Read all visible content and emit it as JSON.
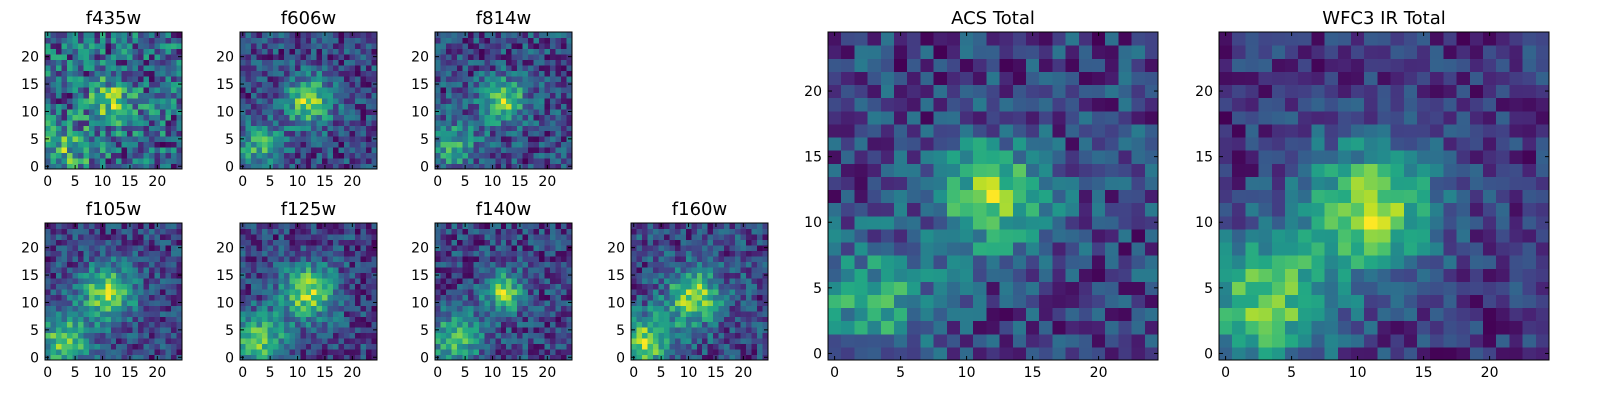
{
  "chart_data": [
    {
      "type": "heatmap",
      "title": "f435w",
      "grid": [
        25,
        25
      ],
      "seed": 11,
      "blobs": [
        [
          12,
          12,
          3.0,
          0.45
        ],
        [
          3,
          3,
          3.5,
          0.35
        ]
      ],
      "noise": 0.34,
      "xticks": [
        0,
        5,
        10,
        15,
        20
      ],
      "yticks": [
        0,
        5,
        10,
        15,
        20
      ]
    },
    {
      "type": "heatmap",
      "title": "f606w",
      "grid": [
        25,
        25
      ],
      "seed": 23,
      "blobs": [
        [
          12,
          12,
          3.0,
          0.75
        ],
        [
          3,
          4,
          3.0,
          0.5
        ]
      ],
      "noise": 0.26,
      "xticks": [
        0,
        5,
        10,
        15,
        20
      ],
      "yticks": [
        0,
        5,
        10,
        15,
        20
      ]
    },
    {
      "type": "heatmap",
      "title": "f814w",
      "grid": [
        25,
        25
      ],
      "seed": 37,
      "blobs": [
        [
          12,
          12,
          2.8,
          0.75
        ],
        [
          3,
          4,
          3.0,
          0.5
        ]
      ],
      "noise": 0.3,
      "xticks": [
        0,
        5,
        10,
        15,
        20
      ],
      "yticks": [
        0,
        5,
        10,
        15,
        20
      ]
    },
    {
      "type": "heatmap",
      "title": "f105w",
      "grid": [
        25,
        25
      ],
      "seed": 41,
      "blobs": [
        [
          11,
          12,
          3.5,
          0.7
        ],
        [
          3,
          3,
          3.5,
          0.6
        ]
      ],
      "noise": 0.22,
      "xticks": [
        0,
        5,
        10,
        15,
        20
      ],
      "yticks": [
        0,
        5,
        10,
        15,
        20
      ]
    },
    {
      "type": "heatmap",
      "title": "f125w",
      "grid": [
        25,
        25
      ],
      "seed": 53,
      "blobs": [
        [
          12,
          12,
          3.5,
          0.7
        ],
        [
          3,
          3,
          3.5,
          0.6
        ]
      ],
      "noise": 0.22,
      "xticks": [
        0,
        5,
        10,
        15,
        20
      ],
      "yticks": [
        0,
        5,
        10,
        15,
        20
      ]
    },
    {
      "type": "heatmap",
      "title": "f140w",
      "grid": [
        25,
        25
      ],
      "seed": 67,
      "blobs": [
        [
          12,
          12,
          2.5,
          0.7
        ],
        [
          3,
          3,
          3.5,
          0.55
        ]
      ],
      "noise": 0.24,
      "xticks": [
        0,
        5,
        10,
        15,
        20
      ],
      "yticks": [
        0,
        5,
        10,
        15,
        20
      ]
    },
    {
      "type": "heatmap",
      "title": "f160w",
      "grid": [
        25,
        25
      ],
      "seed": 79,
      "blobs": [
        [
          11,
          11,
          3.5,
          0.7
        ],
        [
          2,
          3,
          3.5,
          0.7
        ]
      ],
      "noise": 0.24,
      "xticks": [
        0,
        5,
        10,
        15,
        20
      ],
      "yticks": [
        0,
        5,
        10,
        15,
        20
      ]
    },
    {
      "type": "heatmap",
      "title": "ACS Total",
      "grid": [
        25,
        25
      ],
      "seed": 97,
      "blobs": [
        [
          12,
          12,
          2.8,
          0.85
        ],
        [
          3,
          4,
          3.2,
          0.55
        ]
      ],
      "noise": 0.28,
      "xticks": [
        0,
        5,
        10,
        15,
        20
      ],
      "yticks": [
        0,
        5,
        10,
        15,
        20
      ]
    },
    {
      "type": "heatmap",
      "title": "WFC3 IR Total",
      "grid": [
        25,
        25
      ],
      "seed": 113,
      "blobs": [
        [
          11,
          11,
          3.5,
          0.85
        ],
        [
          3,
          4,
          3.5,
          0.75
        ]
      ],
      "noise": 0.2,
      "xticks": [
        0,
        5,
        10,
        15,
        20
      ],
      "yticks": [
        0,
        5,
        10,
        15,
        20
      ]
    }
  ]
}
